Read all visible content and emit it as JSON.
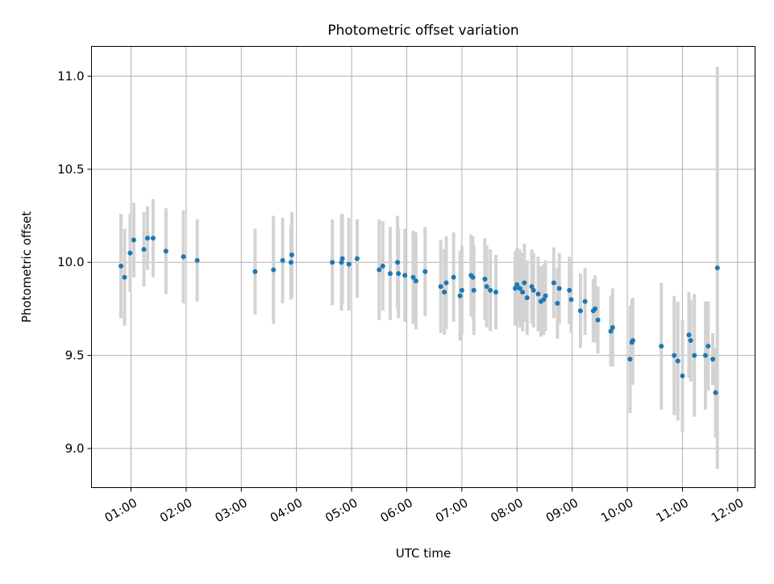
{
  "chart_data": {
    "type": "scatter",
    "title": "Photometric offset variation",
    "xlabel": "UTC time",
    "ylabel": "Photometric offset",
    "xlim": [
      "00:17",
      "12:19"
    ],
    "ylim": [
      8.79,
      11.16
    ],
    "xticks": [
      "01:00",
      "02:00",
      "03:00",
      "04:00",
      "05:00",
      "06:00",
      "07:00",
      "08:00",
      "09:00",
      "10:00",
      "11:00",
      "12:00"
    ],
    "yticks": [
      9.0,
      9.5,
      10.0,
      10.5,
      11.0
    ],
    "ytick_labels": [
      "9.0",
      "9.5",
      "10.0",
      "10.5",
      "11.0"
    ],
    "grid": true,
    "colors": {
      "point": "#1f77b4",
      "errorbar": "#d3d3d3",
      "grid": "#b0b0b0"
    },
    "series": [
      {
        "points": [
          {
            "x": "00:49",
            "y": 9.98,
            "err": 0.28
          },
          {
            "x": "00:53",
            "y": 9.92,
            "err": 0.26
          },
          {
            "x": "00:59",
            "y": 10.05,
            "err": 0.21
          },
          {
            "x": "01:03",
            "y": 10.12,
            "err": 0.2
          },
          {
            "x": "01:14",
            "y": 10.07,
            "err": 0.2
          },
          {
            "x": "01:18",
            "y": 10.13,
            "err": 0.17
          },
          {
            "x": "01:24",
            "y": 10.13,
            "err": 0.21
          },
          {
            "x": "01:38",
            "y": 10.06,
            "err": 0.23
          },
          {
            "x": "01:57",
            "y": 10.03,
            "err": 0.25
          },
          {
            "x": "02:12",
            "y": 10.01,
            "err": 0.22
          },
          {
            "x": "03:15",
            "y": 9.95,
            "err": 0.23
          },
          {
            "x": "03:35",
            "y": 9.96,
            "err": 0.29
          },
          {
            "x": "03:45",
            "y": 10.01,
            "err": 0.23
          },
          {
            "x": "03:54",
            "y": 10.0,
            "err": 0.2
          },
          {
            "x": "03:55",
            "y": 10.04,
            "err": 0.23
          },
          {
            "x": "04:39",
            "y": 10.0,
            "err": 0.23
          },
          {
            "x": "04:49",
            "y": 10.0,
            "err": 0.26
          },
          {
            "x": "04:50",
            "y": 10.02,
            "err": 0.24
          },
          {
            "x": "04:57",
            "y": 9.99,
            "err": 0.25
          },
          {
            "x": "05:06",
            "y": 10.02,
            "err": 0.21
          },
          {
            "x": "05:30",
            "y": 9.96,
            "err": 0.27
          },
          {
            "x": "05:34",
            "y": 9.98,
            "err": 0.24
          },
          {
            "x": "05:42",
            "y": 9.94,
            "err": 0.25
          },
          {
            "x": "05:50",
            "y": 10.0,
            "err": 0.25
          },
          {
            "x": "05:51",
            "y": 9.94,
            "err": 0.24
          },
          {
            "x": "05:58",
            "y": 9.93,
            "err": 0.25
          },
          {
            "x": "06:07",
            "y": 9.92,
            "err": 0.25
          },
          {
            "x": "06:10",
            "y": 9.9,
            "err": 0.26
          },
          {
            "x": "06:20",
            "y": 9.95,
            "err": 0.24
          },
          {
            "x": "06:37",
            "y": 9.87,
            "err": 0.25
          },
          {
            "x": "06:41",
            "y": 9.84,
            "err": 0.23
          },
          {
            "x": "06:43",
            "y": 9.89,
            "err": 0.25
          },
          {
            "x": "06:51",
            "y": 9.92,
            "err": 0.24
          },
          {
            "x": "06:58",
            "y": 9.82,
            "err": 0.24
          },
          {
            "x": "07:00",
            "y": 9.85,
            "err": 0.24
          },
          {
            "x": "07:10",
            "y": 9.93,
            "err": 0.22
          },
          {
            "x": "07:12",
            "y": 9.92,
            "err": 0.22
          },
          {
            "x": "07:13",
            "y": 9.85,
            "err": 0.24
          },
          {
            "x": "07:25",
            "y": 9.91,
            "err": 0.22
          },
          {
            "x": "07:27",
            "y": 9.87,
            "err": 0.22
          },
          {
            "x": "07:31",
            "y": 9.85,
            "err": 0.22
          },
          {
            "x": "07:37",
            "y": 9.84,
            "err": 0.2
          },
          {
            "x": "07:58",
            "y": 9.86,
            "err": 0.2
          },
          {
            "x": "08:00",
            "y": 9.88,
            "err": 0.2
          },
          {
            "x": "08:03",
            "y": 9.86,
            "err": 0.21
          },
          {
            "x": "08:06",
            "y": 9.84,
            "err": 0.21
          },
          {
            "x": "08:08",
            "y": 9.89,
            "err": 0.21
          },
          {
            "x": "08:11",
            "y": 9.81,
            "err": 0.2
          },
          {
            "x": "08:16",
            "y": 9.87,
            "err": 0.2
          },
          {
            "x": "08:18",
            "y": 9.85,
            "err": 0.2
          },
          {
            "x": "08:23",
            "y": 9.83,
            "err": 0.2
          },
          {
            "x": "08:26",
            "y": 9.79,
            "err": 0.19
          },
          {
            "x": "08:29",
            "y": 9.8,
            "err": 0.19
          },
          {
            "x": "08:31",
            "y": 9.82,
            "err": 0.19
          },
          {
            "x": "08:40",
            "y": 9.89,
            "err": 0.19
          },
          {
            "x": "08:44",
            "y": 9.78,
            "err": 0.19
          },
          {
            "x": "08:46",
            "y": 9.86,
            "err": 0.19
          },
          {
            "x": "08:57",
            "y": 9.85,
            "err": 0.18
          },
          {
            "x": "08:59",
            "y": 9.8,
            "err": 0.18
          },
          {
            "x": "09:09",
            "y": 9.74,
            "err": 0.2
          },
          {
            "x": "09:14",
            "y": 9.79,
            "err": 0.18
          },
          {
            "x": "09:23",
            "y": 9.74,
            "err": 0.17
          },
          {
            "x": "09:25",
            "y": 9.75,
            "err": 0.18
          },
          {
            "x": "09:28",
            "y": 9.69,
            "err": 0.18
          },
          {
            "x": "09:42",
            "y": 9.63,
            "err": 0.19
          },
          {
            "x": "09:44",
            "y": 9.65,
            "err": 0.21
          },
          {
            "x": "10:03",
            "y": 9.48,
            "err": 0.29
          },
          {
            "x": "10:05",
            "y": 9.57,
            "err": 0.23
          },
          {
            "x": "10:06",
            "y": 9.58,
            "err": 0.23
          },
          {
            "x": "10:37",
            "y": 9.55,
            "err": 0.34
          },
          {
            "x": "10:51",
            "y": 9.5,
            "err": 0.32
          },
          {
            "x": "10:55",
            "y": 9.47,
            "err": 0.32
          },
          {
            "x": "11:00",
            "y": 9.39,
            "err": 0.3
          },
          {
            "x": "11:07",
            "y": 9.61,
            "err": 0.23
          },
          {
            "x": "11:09",
            "y": 9.58,
            "err": 0.22
          },
          {
            "x": "11:13",
            "y": 9.5,
            "err": 0.33
          },
          {
            "x": "11:25",
            "y": 9.5,
            "err": 0.29
          },
          {
            "x": "11:28",
            "y": 9.55,
            "err": 0.24
          },
          {
            "x": "11:33",
            "y": 9.48,
            "err": 0.14
          },
          {
            "x": "11:36",
            "y": 9.3,
            "err": 0.24
          },
          {
            "x": "11:38",
            "y": 9.97,
            "err": 1.08
          }
        ]
      }
    ]
  }
}
